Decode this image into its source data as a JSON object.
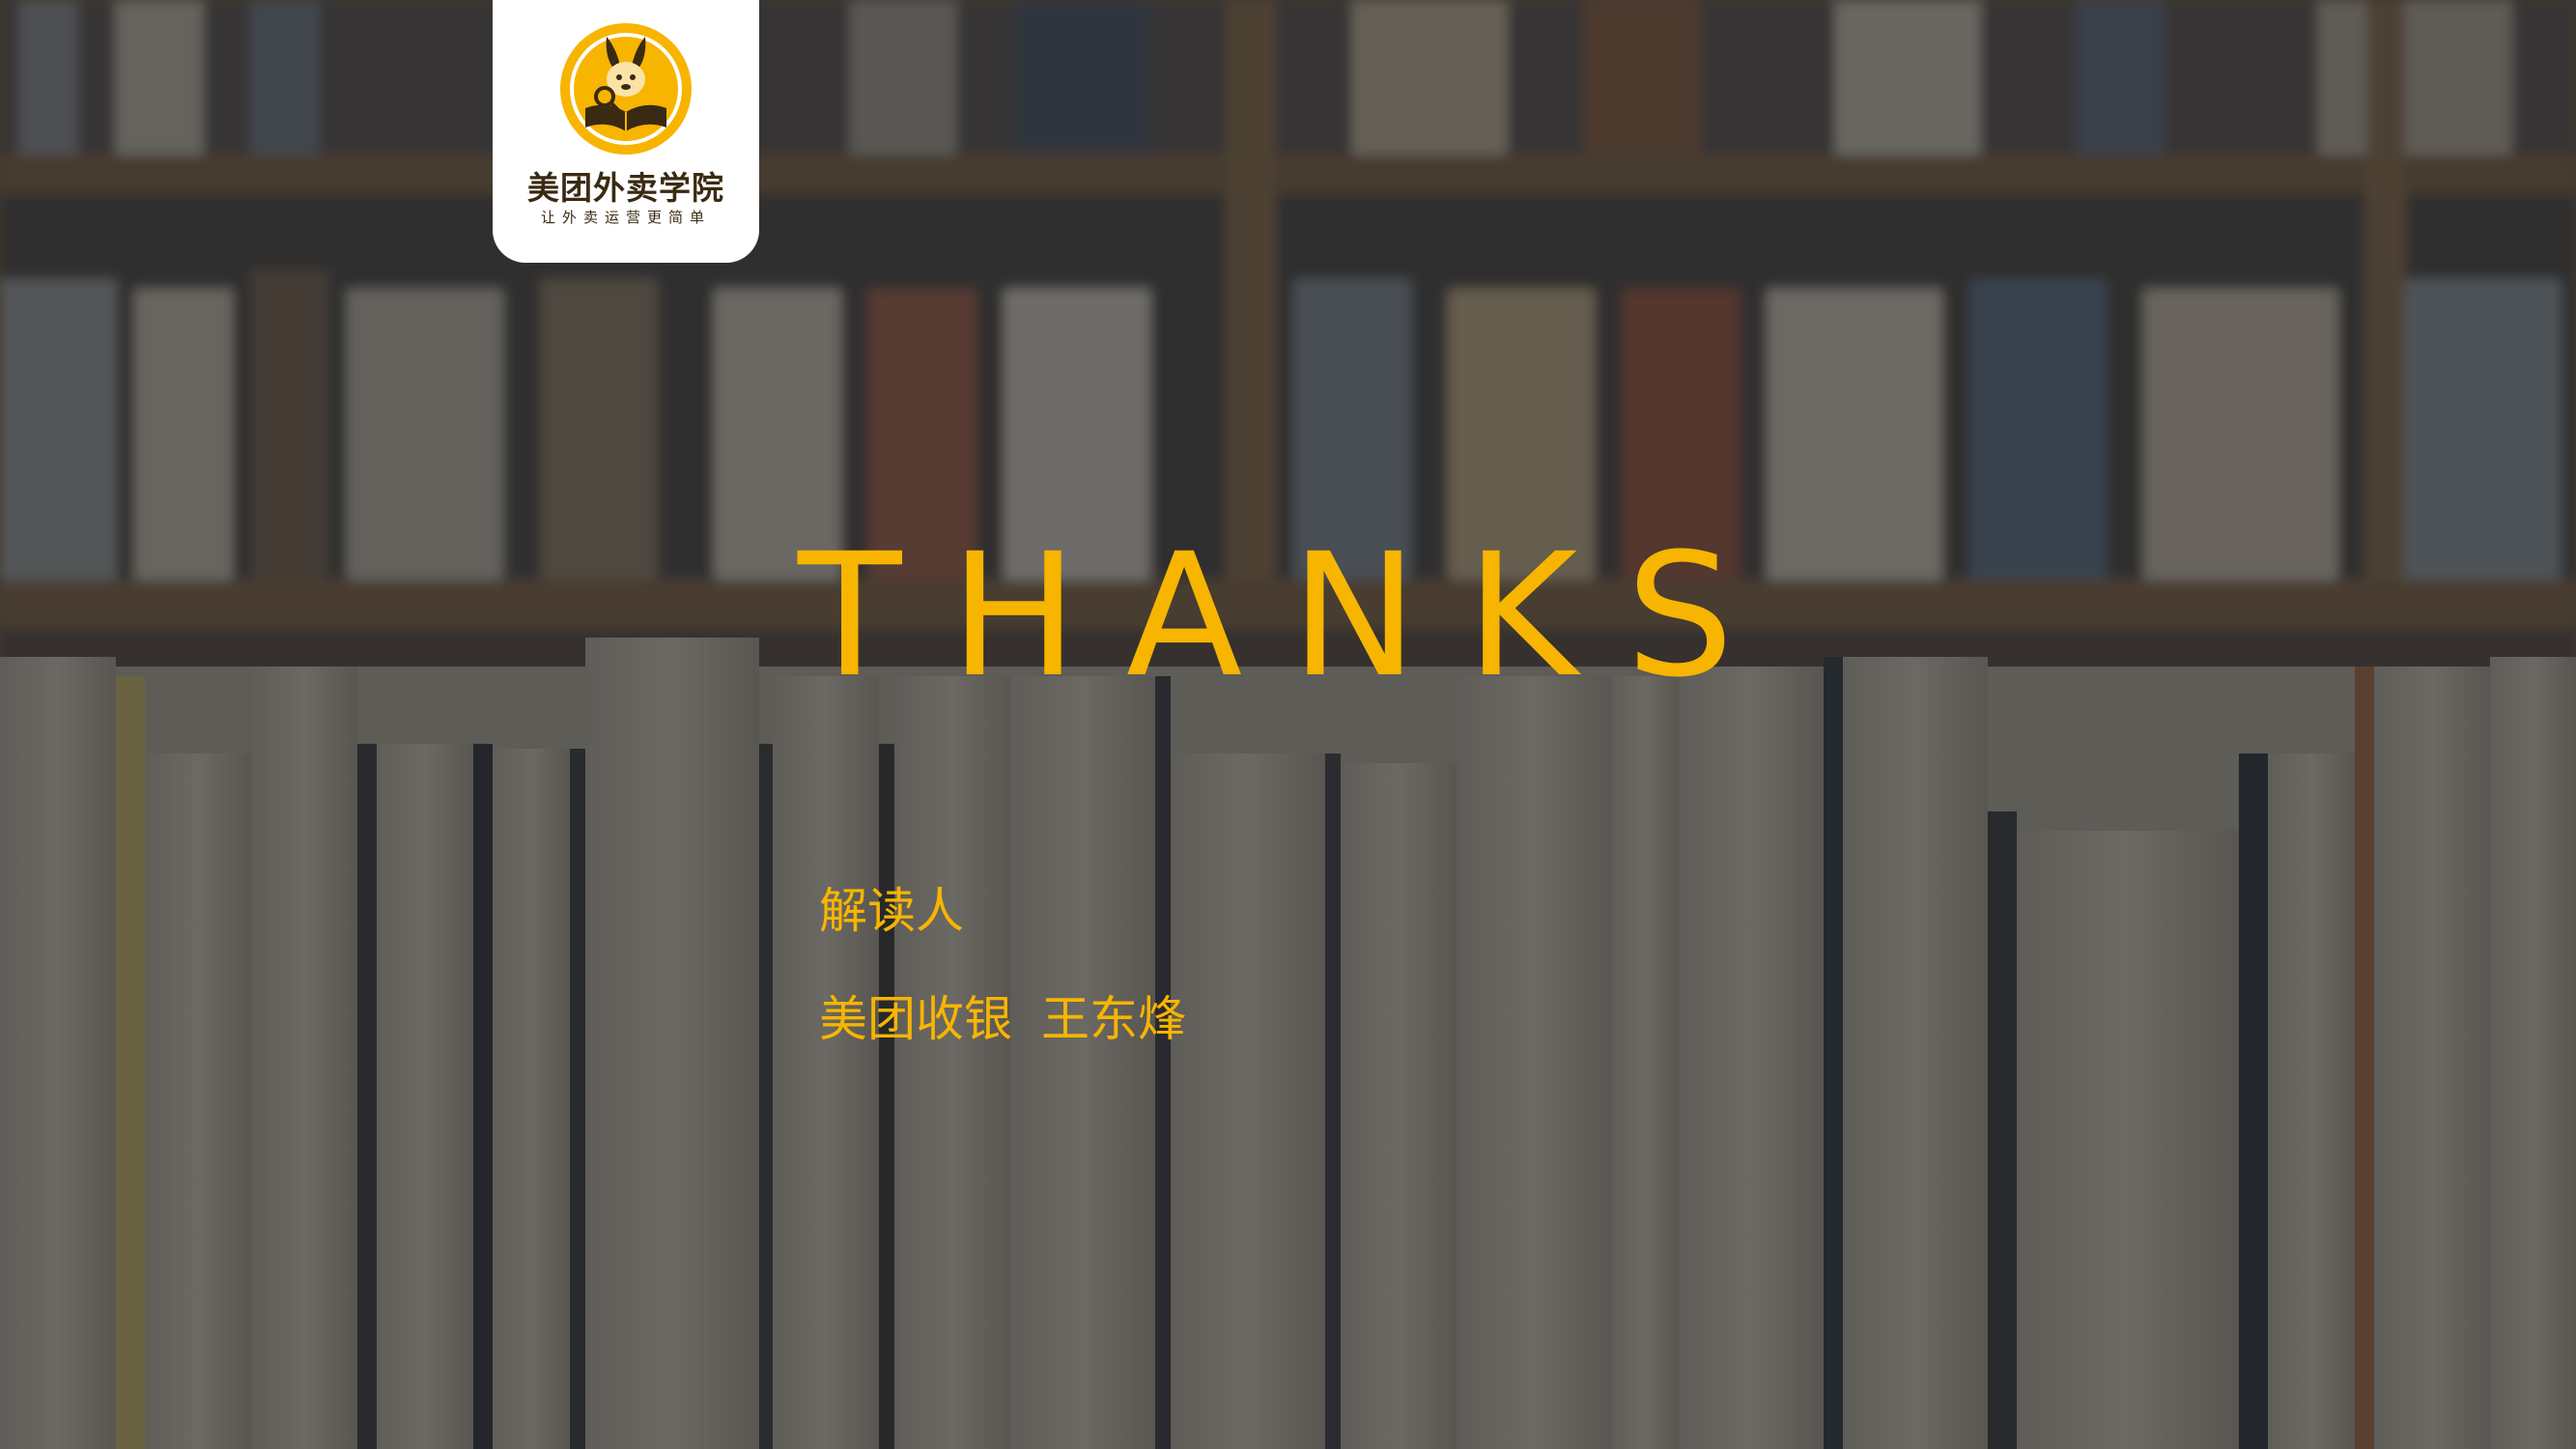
{
  "brand": {
    "name": "美团外卖学院",
    "slogan": "让外卖运营更简单",
    "accent_color": "#f7b500",
    "mascot_icon": "kangaroo-reading-book-icon"
  },
  "main": {
    "title": "THANKS",
    "reader_label": "解读人",
    "reader_org": "美团收银",
    "reader_person": "王东烽"
  },
  "background": {
    "image": "bookshelf-and-book-spines-photo"
  }
}
